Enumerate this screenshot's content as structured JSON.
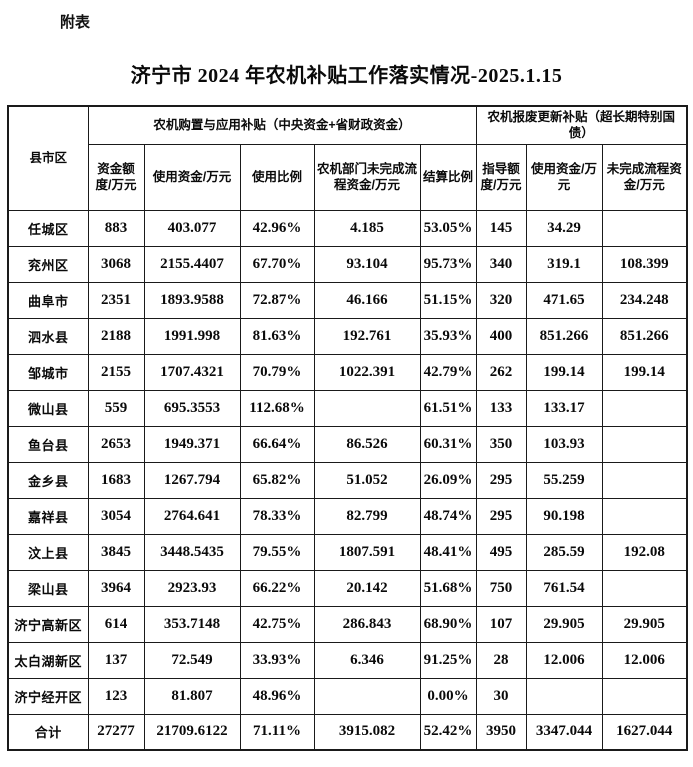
{
  "page": {
    "annotation": "附表",
    "title": "济宁市 2024 年农机补贴工作落实情况-2025.1.15"
  },
  "table": {
    "corner_header": "县市区",
    "groups": [
      {
        "label": "农机购置与应用补贴（中央资金+省财政资金）",
        "columns": [
          "资金额度/万元",
          "使用资金/万元",
          "使用比例",
          "农机部门未完成流程资金/万元",
          "结算比例"
        ]
      },
      {
        "label": "农机报废更新补贴（超长期特别国债）",
        "columns": [
          "指导额度/万元",
          "使用资金/万元",
          "未完成流程资金/万元"
        ]
      }
    ],
    "rows": [
      {
        "region": "任城区",
        "values": [
          "883",
          "403.077",
          "42.96%",
          "4.185",
          "53.05%",
          "145",
          "34.29",
          ""
        ]
      },
      {
        "region": "兖州区",
        "values": [
          "3068",
          "2155.4407",
          "67.70%",
          "93.104",
          "95.73%",
          "340",
          "319.1",
          "108.399"
        ]
      },
      {
        "region": "曲阜市",
        "values": [
          "2351",
          "1893.9588",
          "72.87%",
          "46.166",
          "51.15%",
          "320",
          "471.65",
          "234.248"
        ]
      },
      {
        "region": "泗水县",
        "values": [
          "2188",
          "1991.998",
          "81.63%",
          "192.761",
          "35.93%",
          "400",
          "851.266",
          "851.266"
        ]
      },
      {
        "region": "邹城市",
        "values": [
          "2155",
          "1707.4321",
          "70.79%",
          "1022.391",
          "42.79%",
          "262",
          "199.14",
          "199.14"
        ]
      },
      {
        "region": "微山县",
        "values": [
          "559",
          "695.3553",
          "112.68%",
          "",
          "61.51%",
          "133",
          "133.17",
          ""
        ]
      },
      {
        "region": "鱼台县",
        "values": [
          "2653",
          "1949.371",
          "66.64%",
          "86.526",
          "60.31%",
          "350",
          "103.93",
          ""
        ]
      },
      {
        "region": "金乡县",
        "values": [
          "1683",
          "1267.794",
          "65.82%",
          "51.052",
          "26.09%",
          "295",
          "55.259",
          ""
        ]
      },
      {
        "region": "嘉祥县",
        "values": [
          "3054",
          "2764.641",
          "78.33%",
          "82.799",
          "48.74%",
          "295",
          "90.198",
          ""
        ]
      },
      {
        "region": "汶上县",
        "values": [
          "3845",
          "3448.5435",
          "79.55%",
          "1807.591",
          "48.41%",
          "495",
          "285.59",
          "192.08"
        ]
      },
      {
        "region": "梁山县",
        "values": [
          "3964",
          "2923.93",
          "66.22%",
          "20.142",
          "51.68%",
          "750",
          "761.54",
          ""
        ]
      },
      {
        "region": "济宁高新区",
        "values": [
          "614",
          "353.7148",
          "42.75%",
          "286.843",
          "68.90%",
          "107",
          "29.905",
          "29.905"
        ]
      },
      {
        "region": "太白湖新区",
        "values": [
          "137",
          "72.549",
          "33.93%",
          "6.346",
          "91.25%",
          "28",
          "12.006",
          "12.006"
        ]
      },
      {
        "region": "济宁经开区",
        "values": [
          "123",
          "81.807",
          "48.96%",
          "",
          "0.00%",
          "30",
          "",
          ""
        ]
      },
      {
        "region": "合计",
        "values": [
          "27277",
          "21709.6122",
          "71.11%",
          "3915.082",
          "52.42%",
          "3950",
          "3347.044",
          "1627.044"
        ]
      }
    ]
  }
}
